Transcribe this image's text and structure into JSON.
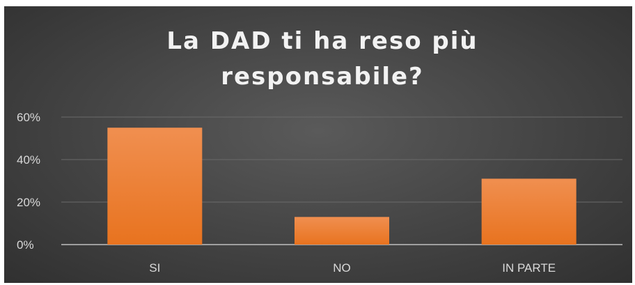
{
  "chart_data": {
    "type": "bar",
    "title": "La DAD ti ha reso più responsabile?",
    "title_lines": [
      "La DAD ti ha reso più",
      "responsabile?"
    ],
    "categories": [
      "SI",
      "NO",
      "IN PARTE"
    ],
    "values": [
      0.55,
      0.13,
      0.31
    ],
    "ylim": [
      0,
      0.6
    ],
    "yticks": [
      0,
      0.2,
      0.4,
      0.6
    ],
    "ytick_labels": [
      "0%",
      "20%",
      "40%",
      "60%"
    ],
    "xlabel": "",
    "ylabel": "",
    "grid": true,
    "legend": "none",
    "bar_color_top": "#f08f50",
    "bar_color_bottom": "#e8731f",
    "background_color": "#404040"
  }
}
